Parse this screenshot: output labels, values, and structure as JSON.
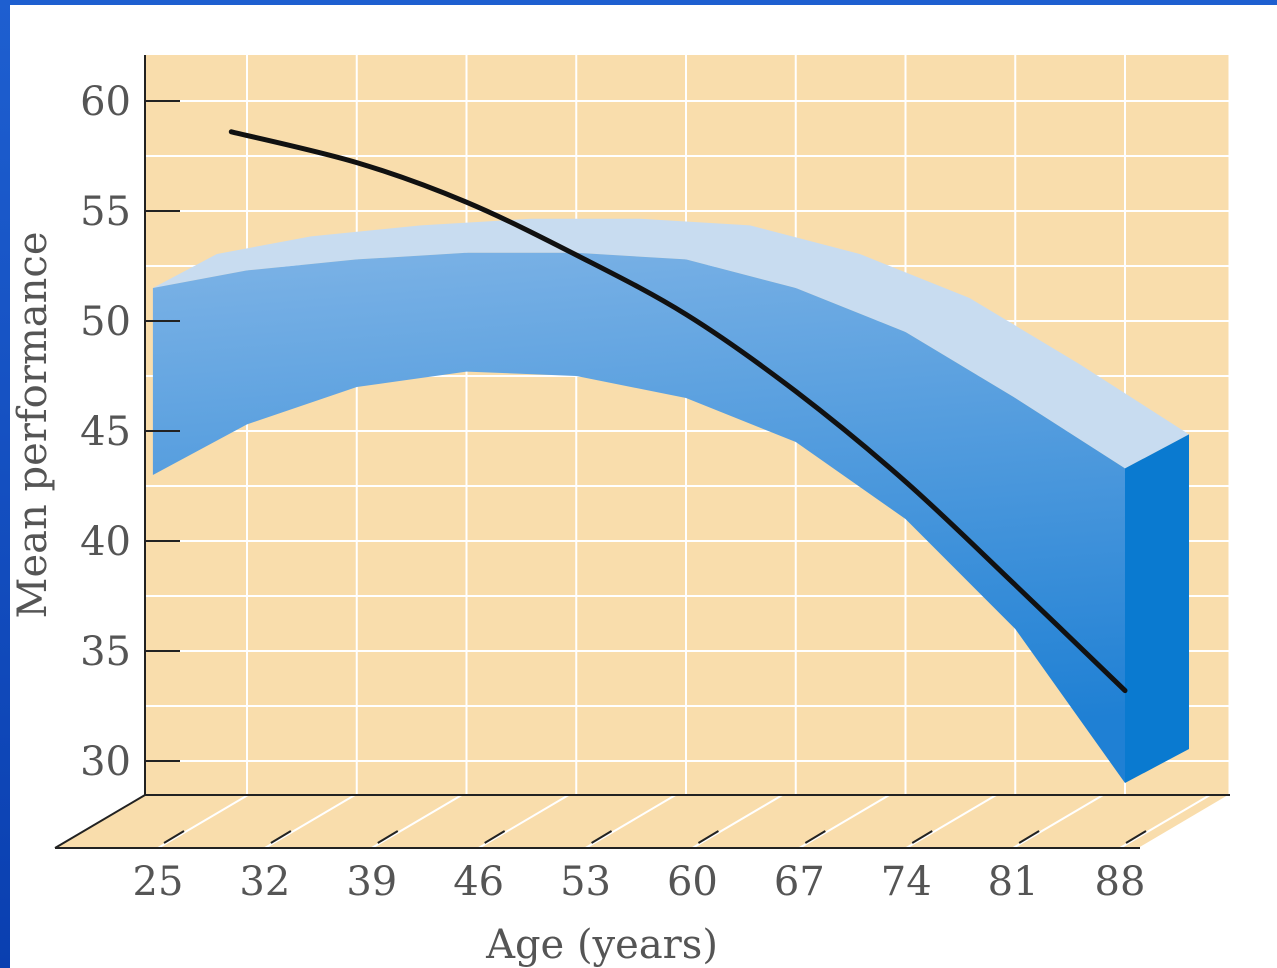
{
  "chart_data": {
    "type": "line",
    "xlabel": "Age (years)",
    "ylabel": "Mean performance",
    "x_ticks": [
      25,
      32,
      39,
      46,
      53,
      60,
      67,
      74,
      81,
      88
    ],
    "y_ticks": [
      30,
      35,
      40,
      45,
      50,
      55,
      60
    ],
    "xlim": [
      23.5,
      93.5
    ],
    "ylim": [
      28,
      62
    ],
    "grid": true,
    "series": [
      {
        "style": "line",
        "color": "#111111",
        "x": [
          31,
          39,
          46,
          53,
          60,
          67,
          74,
          81,
          88
        ],
        "y": [
          58.6,
          57.2,
          55.4,
          53.0,
          50.3,
          46.8,
          42.7,
          38.0,
          33.2
        ]
      },
      {
        "style": "band",
        "color": "#3a8fd8",
        "x": [
          26,
          32,
          39,
          46,
          53,
          60,
          67,
          74,
          81,
          88
        ],
        "upper": [
          51.5,
          52.3,
          52.8,
          53.1,
          53.1,
          52.8,
          51.5,
          49.5,
          46.5,
          43.3
        ],
        "lower": [
          43.0,
          45.3,
          47.0,
          47.7,
          47.5,
          46.5,
          44.5,
          41.0,
          36.0,
          29.0
        ]
      }
    ],
    "colors": {
      "background": "#f9ddac",
      "grid": "#ffffff",
      "band_top": "#c8dcf0",
      "band_face_light": "#7db3e6",
      "band_face_dark": "#1f80d4",
      "band_side": "#0a7ad0"
    }
  }
}
